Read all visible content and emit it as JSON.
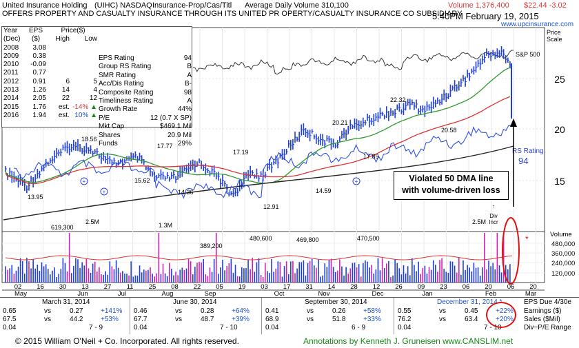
{
  "header": {
    "company": "United Insurance Holding",
    "ticker_exchange": "(UIHC) NASDAQ",
    "sector": "Insurance-Prop/Cas/Titl",
    "avg_volume": "Average Daily Volume 310,100",
    "description": "OFFERS PROPERTY AND CASUALTY INSURANCE THROUGH ITS UNITED PR OPERTY/CASUALTY INSURANCE CO SUBSIDIARY",
    "volume": "Volume 1,376,400",
    "price_change": "$22.44 -3.02",
    "timestamp": "5:40PM February 19, 2015",
    "website": "www.upcinsurance.com",
    "price_scale_label": "Price\nScale"
  },
  "fundamentals": {
    "headers": {
      "year": "Year",
      "year_sub": "(Dec)",
      "eps": "EPS",
      "eps_sub": "($)",
      "price": "Price($)",
      "high": "High",
      "low": "Low"
    },
    "rows": [
      {
        "year": "2008",
        "eps": "3.08",
        "high": "",
        "low": "",
        "note": ""
      },
      {
        "year": "2009",
        "eps": "0.38",
        "high": "",
        "low": "",
        "note": ""
      },
      {
        "year": "2010",
        "eps": "-0.09",
        "high": "",
        "low": "",
        "note": ""
      },
      {
        "year": "2011",
        "eps": "0.77",
        "high": "",
        "low": "",
        "note": ""
      },
      {
        "year": "2012",
        "eps": "0.91",
        "high": "6",
        "low": "5",
        "note": ""
      },
      {
        "year": "2013",
        "eps": "1.26",
        "high": "14",
        "low": "4",
        "note": ""
      },
      {
        "year": "2014",
        "eps": "2.05",
        "high": "22",
        "low": "12",
        "note": ""
      },
      {
        "year": "2015",
        "eps": "1.76",
        "high": "est.",
        "low": "-14%",
        "note": "down"
      },
      {
        "year": "2016",
        "eps": "1.94",
        "high": "est.",
        "low": "10%",
        "note": "up"
      }
    ],
    "ratings": [
      {
        "label": "EPS Rating",
        "value": "94"
      },
      {
        "label": "Group RS Rating",
        "value": "B"
      },
      {
        "label": "SMR Rating",
        "value": "A"
      },
      {
        "label": "Acc/Dis Rating",
        "value": "B-"
      },
      {
        "label": "Composite Rating",
        "value": "98"
      },
      {
        "label": "Timeliness Rating",
        "value": "A"
      },
      {
        "label": "Growth Rate",
        "value": "44%"
      },
      {
        "label": "P/E",
        "value": "12 (0.7 X SP)"
      },
      {
        "label": "Mkt Cap",
        "value": "$469.1 Mil"
      },
      {
        "label": "Shares",
        "value": "20.9 Mil"
      },
      {
        "label": "Funds",
        "value": "29%"
      }
    ]
  },
  "chart_data": {
    "type": "line",
    "price_axis_ticks": [
      "25",
      "20",
      "15"
    ],
    "price_annotations": [
      "18.56",
      "17.77",
      "15.62",
      "17.19",
      "13.95",
      "14.36",
      "12.91",
      "14.59",
      "20.21",
      "17.89",
      "22.32",
      "20.58"
    ],
    "volume_axis_ticks": [
      "480,000",
      "360,000",
      "240,000",
      "120,000"
    ],
    "volume_label": "Volume",
    "volume_annotations": [
      "619,300",
      "2.5M",
      "1.3M",
      "389,200",
      "480,600",
      "469,800",
      "470,500",
      "2.5M"
    ],
    "x_ticks": [
      "02",
      "16",
      "30",
      "13",
      "27",
      "11",
      "25",
      "08",
      "22",
      "05",
      "19",
      "03",
      "17",
      "31",
      "14",
      "28",
      "12",
      "26",
      "09",
      "23",
      "06",
      "20",
      "06",
      "20"
    ],
    "months": [
      "May",
      "Jun",
      "Jul",
      "Aug",
      "Sep",
      "Oct",
      "Nov",
      "Dec",
      "Jan",
      "Feb",
      "Mar"
    ],
    "sp500_label": "S&P 500",
    "rs_label": "RS Rating",
    "rs_value": "94",
    "div_label": "Div\nIncr",
    "annotation": "Violated 50 DMA line\nwith volume-driven loss",
    "series": [
      {
        "name": "S&P 500",
        "color": "#333333"
      },
      {
        "name": "RS Rating",
        "color": "#2a3fd6"
      }
    ],
    "colors": {
      "price_bar": "#1f3fd6",
      "volume_up": "#1f3fd6",
      "volume_big": "#d21fb0",
      "ma50": "#2e9a2e",
      "ma200": "#e03232",
      "long_ma": "#222222",
      "rs": "#3050e0",
      "circle": "#e01010"
    }
  },
  "quarters": [
    {
      "title": "March 31, 2014",
      "eps_cur": "0.65",
      "eps_prev": "0.27",
      "eps_chg": "+141%",
      "sales_cur": "67.5",
      "sales_prev": "44.2",
      "sales_chg": "+53%",
      "div_cur": "0.04",
      "div_range": "7 - 9"
    },
    {
      "title": "June 30, 2014",
      "eps_cur": "0.46",
      "eps_prev": "0.28",
      "eps_chg": "+64%",
      "sales_cur": "67.7",
      "sales_prev": "48.7",
      "sales_chg": "+39%",
      "div_cur": "0.04",
      "div_range": "7 - 10"
    },
    {
      "title": "September 30, 2014",
      "eps_cur": "0.41",
      "eps_prev": "0.26",
      "eps_chg": "+58%",
      "sales_cur": "68.9",
      "sales_prev": "51.8",
      "sales_chg": "+33%",
      "div_cur": "0.04",
      "div_range": "6 - 9"
    },
    {
      "title": "December 31, 2014 *",
      "eps_cur": "0.55",
      "eps_prev": "0.45",
      "eps_chg": "+22%",
      "sales_cur": "76.2",
      "sales_prev": "63.4",
      "sales_chg": "+20%",
      "div_cur": "0.04",
      "div_range": "7 - 10"
    }
  ],
  "vs": "vs",
  "eps_due": "EPS Due 4/30e",
  "row_labels": [
    "Earnings ($)",
    "Sales ($Mil)",
    "Div−P/E Range"
  ],
  "footer": {
    "copyright": "© 2015  William O'Neil + Co. Incorporated. All rights reserved.",
    "annotations": "Annotations by Kenneth J. Gruneisen www.CANSLIM.net"
  }
}
